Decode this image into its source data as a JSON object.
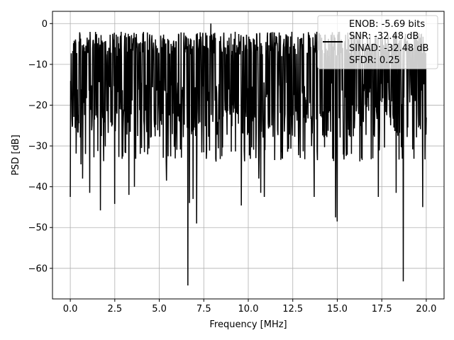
{
  "chart_data": {
    "type": "line",
    "xlabel": "Frequency [MHz]",
    "ylabel": "PSD [dB]",
    "xlim": [
      -1.0,
      21.0
    ],
    "ylim": [
      -67.5,
      3.0
    ],
    "xticks": [
      0.0,
      2.5,
      5.0,
      7.5,
      10.0,
      12.5,
      15.0,
      17.5,
      20.0
    ],
    "xtick_labels": [
      "0.0",
      "2.5",
      "5.0",
      "7.5",
      "10.0",
      "12.5",
      "15.0",
      "17.5",
      "20.0"
    ],
    "yticks": [
      0,
      -10,
      -20,
      -30,
      -40,
      -50,
      -60
    ],
    "ytick_labels": [
      "0",
      "−10",
      "−20",
      "−30",
      "−40",
      "−50",
      "−60"
    ],
    "grid": true,
    "legend_position": "top-right",
    "legend_lines": [
      "ENOB: -5.69 bits",
      "SNR: -32.48 dB",
      "SINAD: -32.48 dB",
      "SFDR: 0.25"
    ],
    "series_color": "#000000",
    "noise_floor_range": [
      -30,
      -2
    ],
    "peak": {
      "x": 7.9,
      "y": 0.0
    },
    "dips": [
      {
        "x": 0.0,
        "y": -42.5
      },
      {
        "x": 0.6,
        "y": -34.5
      },
      {
        "x": 0.7,
        "y": -38.0
      },
      {
        "x": 1.1,
        "y": -41.5
      },
      {
        "x": 1.7,
        "y": -45.8
      },
      {
        "x": 2.5,
        "y": -44.2
      },
      {
        "x": 3.3,
        "y": -42.0
      },
      {
        "x": 3.6,
        "y": -40.0
      },
      {
        "x": 5.4,
        "y": -38.5
      },
      {
        "x": 6.6,
        "y": -64.2
      },
      {
        "x": 6.7,
        "y": -44.0
      },
      {
        "x": 6.9,
        "y": -43.0
      },
      {
        "x": 7.1,
        "y": -49.0
      },
      {
        "x": 9.6,
        "y": -44.6
      },
      {
        "x": 10.6,
        "y": -38.0
      },
      {
        "x": 10.7,
        "y": -41.5
      },
      {
        "x": 10.9,
        "y": -42.5
      },
      {
        "x": 13.7,
        "y": -42.5
      },
      {
        "x": 14.9,
        "y": -47.5
      },
      {
        "x": 15.0,
        "y": -48.5
      },
      {
        "x": 17.3,
        "y": -42.5
      },
      {
        "x": 18.3,
        "y": -41.5
      },
      {
        "x": 18.7,
        "y": -63.2
      },
      {
        "x": 19.8,
        "y": -45.0
      }
    ],
    "num_points": 1100
  }
}
